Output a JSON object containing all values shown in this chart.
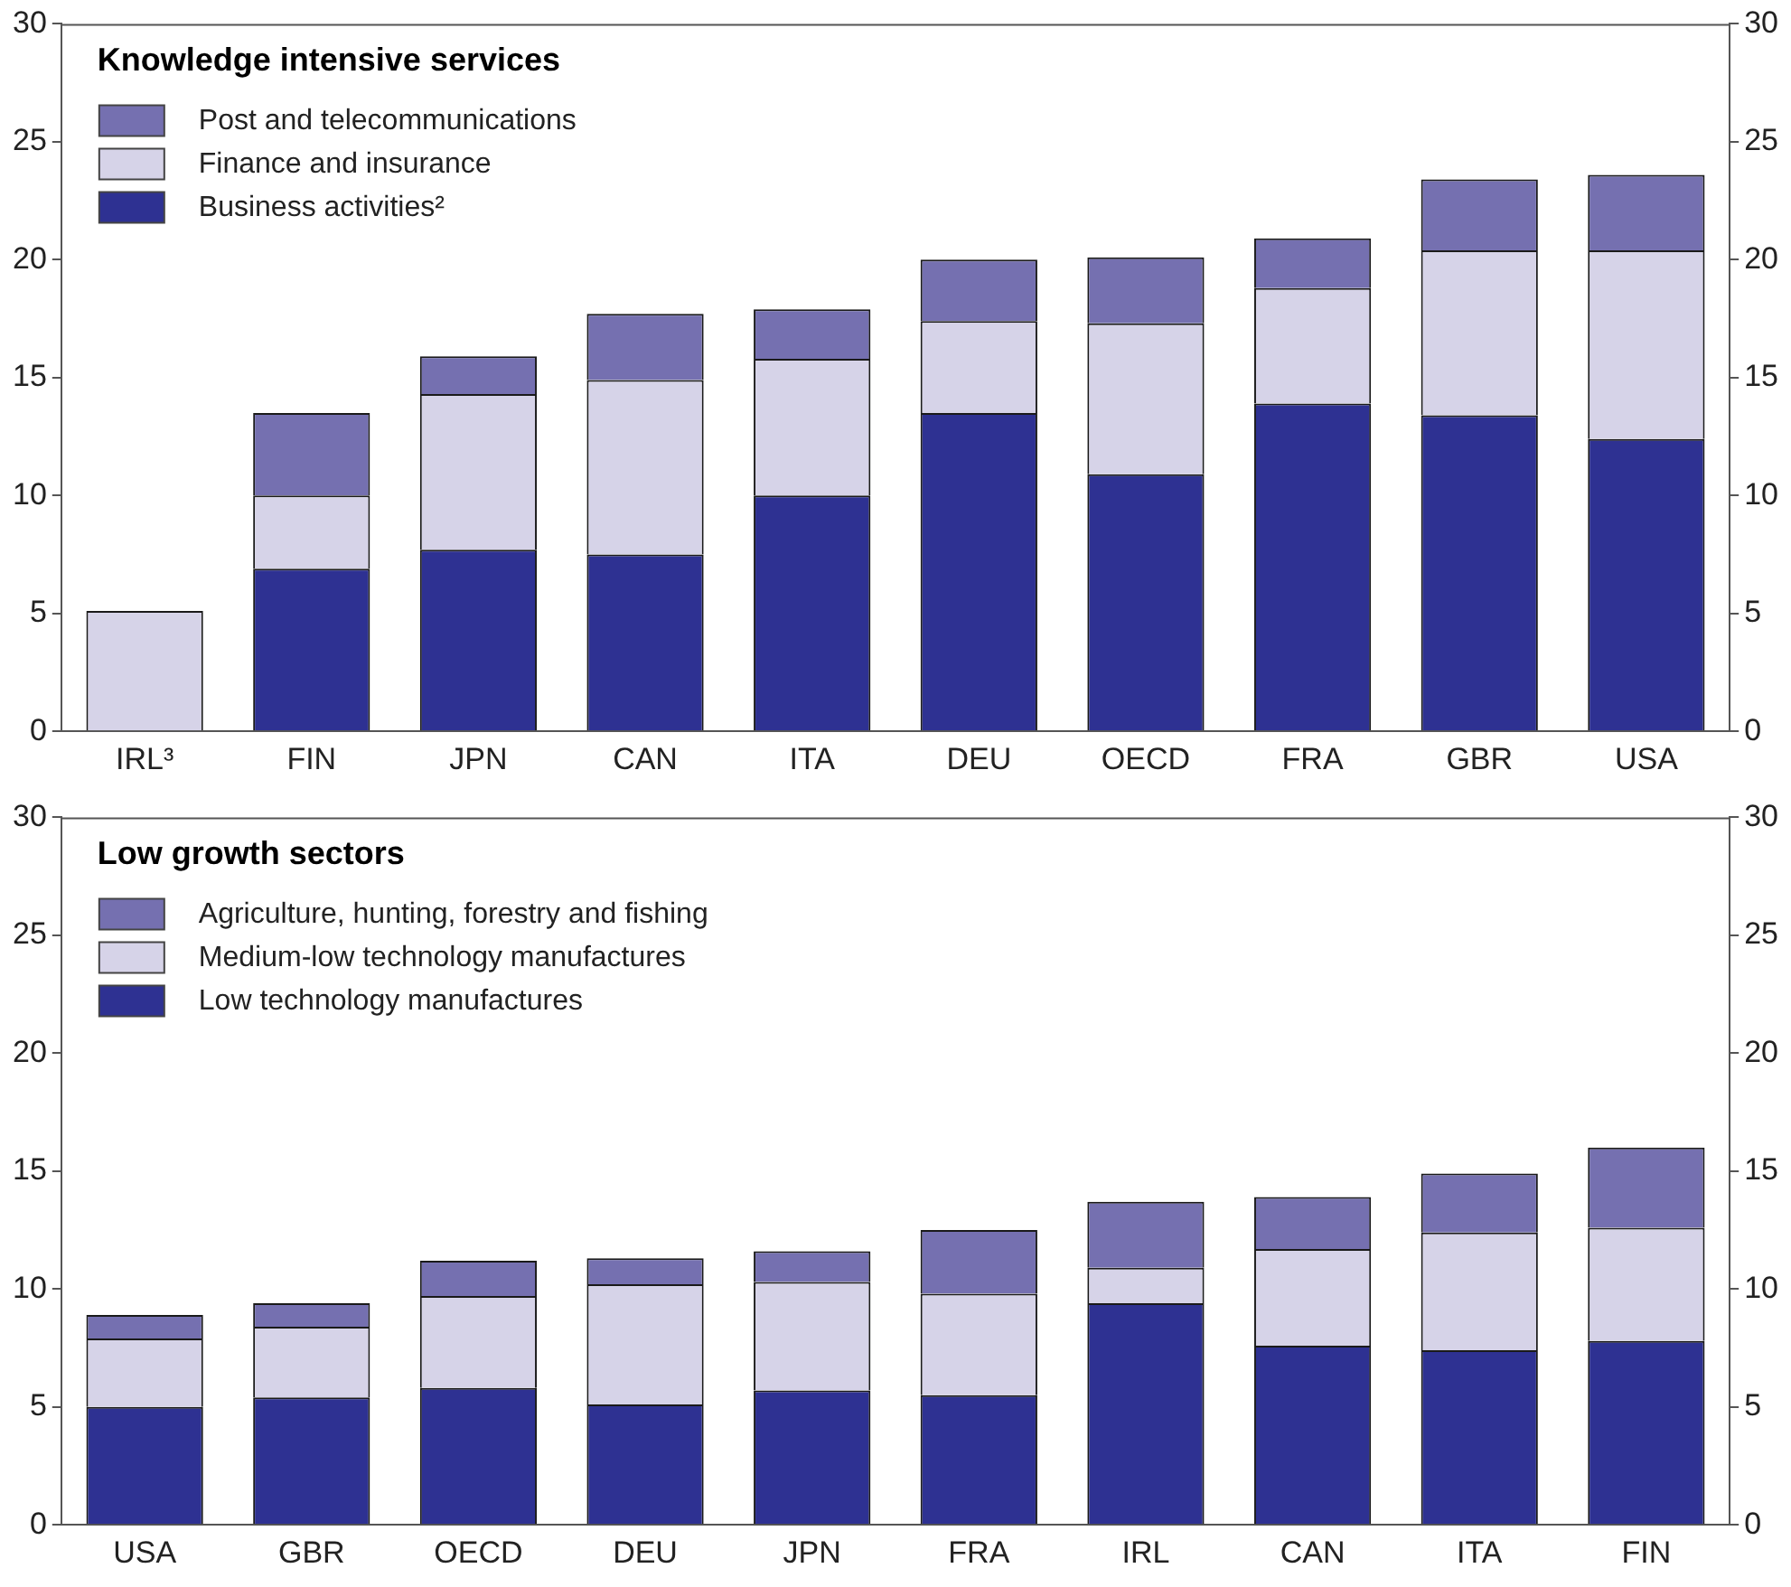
{
  "chart_data": [
    {
      "type": "bar",
      "title": "Knowledge intensive services",
      "categories": [
        "IRL³",
        "FIN",
        "JPN",
        "CAN",
        "ITA",
        "DEU",
        "OECD",
        "FRA",
        "GBR",
        "USA"
      ],
      "stacked": true,
      "legend": "top left",
      "grid": false,
      "ylim": [
        0,
        30
      ],
      "yticks": [
        0,
        5,
        10,
        15,
        20,
        25,
        30
      ],
      "y2lim": [
        0,
        30
      ],
      "y2ticks": [
        0,
        5,
        10,
        15,
        20,
        25,
        30
      ],
      "series": [
        {
          "name": "Business activities²",
          "color": "#2e3192",
          "values": [
            0,
            6.9,
            7.7,
            7.5,
            10.0,
            13.5,
            10.9,
            13.9,
            13.4,
            12.4
          ]
        },
        {
          "name": "Finance and insurance",
          "color": "#d6d3e8",
          "values": [
            5.1,
            3.1,
            6.6,
            7.4,
            5.8,
            3.9,
            6.4,
            4.9,
            7.0,
            8.0
          ]
        },
        {
          "name": "Post and telecommunications",
          "color": "#7570b0",
          "values": [
            0,
            3.5,
            1.6,
            2.8,
            2.1,
            2.6,
            2.8,
            2.1,
            3.0,
            3.2
          ]
        }
      ]
    },
    {
      "type": "bar",
      "title": "Low growth sectors",
      "categories": [
        "USA",
        "GBR",
        "OECD",
        "DEU",
        "JPN",
        "FRA",
        "IRL",
        "CAN",
        "ITA",
        "FIN"
      ],
      "stacked": true,
      "legend": "top left",
      "grid": false,
      "ylim": [
        0,
        30
      ],
      "yticks": [
        0,
        5,
        10,
        15,
        20,
        25,
        30
      ],
      "y2lim": [
        0,
        30
      ],
      "y2ticks": [
        0,
        5,
        10,
        15,
        20,
        25,
        30
      ],
      "series": [
        {
          "name": "Low technology manufactures",
          "color": "#2e3192",
          "values": [
            5.0,
            5.4,
            5.8,
            5.1,
            5.7,
            5.5,
            9.4,
            7.6,
            7.4,
            7.8
          ]
        },
        {
          "name": "Medium-low technology manufactures",
          "color": "#d6d3e8",
          "values": [
            2.9,
            3.0,
            3.9,
            5.1,
            4.6,
            4.3,
            1.5,
            4.1,
            5.0,
            4.8
          ]
        },
        {
          "name": "Agriculture, hunting, forestry and fishing",
          "color": "#7570b0",
          "values": [
            1.0,
            1.0,
            1.5,
            1.1,
            1.3,
            2.7,
            2.8,
            2.2,
            2.5,
            3.4
          ]
        }
      ]
    }
  ]
}
